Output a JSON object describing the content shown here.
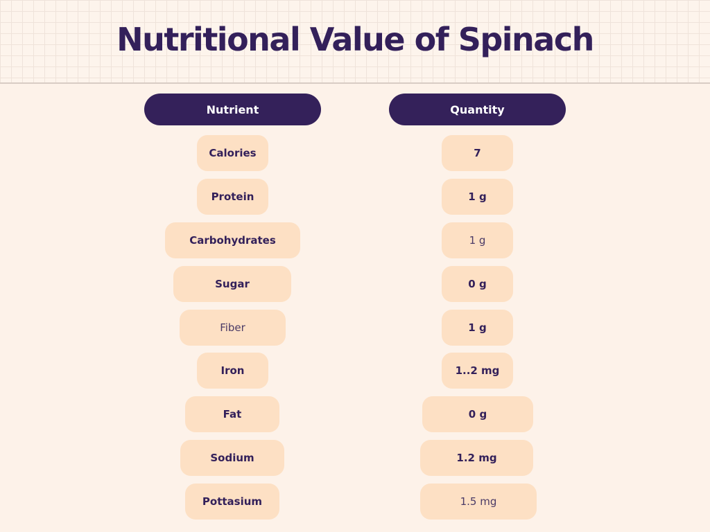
{
  "title": "Nutritional Value of Spinach",
  "headers": {
    "nutrient": "Nutrient",
    "quantity": "Quantity"
  },
  "rows": [
    {
      "nutrient": "Calories",
      "quantity": "7"
    },
    {
      "nutrient": "Protein",
      "quantity": "1 g"
    },
    {
      "nutrient": "Carbohydrates",
      "quantity": "1 g"
    },
    {
      "nutrient": "Sugar",
      "quantity": "0 g"
    },
    {
      "nutrient": "Fiber",
      "quantity": "1 g"
    },
    {
      "nutrient": "Iron",
      "quantity": "1..2 mg"
    },
    {
      "nutrient": "Fat",
      "quantity": "0 g"
    },
    {
      "nutrient": "Sodium",
      "quantity": "1.2 mg"
    },
    {
      "nutrient": "Pottasium",
      "quantity": "1.5 mg"
    }
  ],
  "colors": {
    "dark_purple": "#34215a",
    "pill_peach": "#fde0c4",
    "background": "#fdf2e9"
  }
}
